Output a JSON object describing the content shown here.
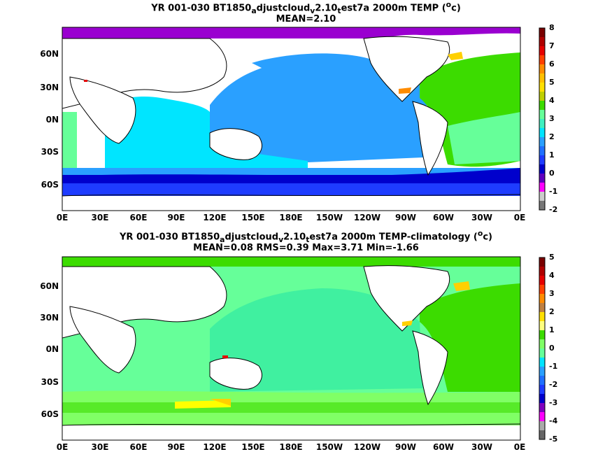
{
  "panels": [
    {
      "title_parts": [
        "YR 001-030 BT1850",
        "a",
        "djustcloud",
        "v",
        "2.10",
        "t",
        "est7a 2000m TEMP (",
        "o",
        "c)"
      ],
      "stats": "MEAN=2.10",
      "colorbar_labels": [
        "8",
        "7",
        "6",
        "5",
        "4",
        "3",
        "2",
        "1",
        "0",
        "-1",
        "-2"
      ],
      "colorbar_colors": [
        "#7a0000",
        "#e60000",
        "#ff8c00",
        "#ffd000",
        "#3cdc00",
        "#66ff99",
        "#00e5ff",
        "#2aa0ff",
        "#0000cc",
        "#ff00ff",
        "#aaaaaa"
      ]
    },
    {
      "title_parts": [
        "YR 001-030 BT1850",
        "a",
        "djustcloud",
        "v",
        "2.10",
        "t",
        "est7a 2000m TEMP-climatology (",
        "o",
        "c)"
      ],
      "stats": "MEAN=0.08   RMS=0.39   Max=3.71   Min=-1.66",
      "colorbar_labels": [
        "5",
        "4",
        "3",
        "2",
        "1",
        "0",
        "-1",
        "-2",
        "-3",
        "-4",
        "-5"
      ],
      "colorbar_colors": [
        "#7a0000",
        "#e60000",
        "#ff8c00",
        "#ffd000",
        "#3cdc00",
        "#66ff99",
        "#00e5ff",
        "#2aa0ff",
        "#0000cc",
        "#8000c0",
        "#ff00ff",
        "#888888"
      ]
    }
  ],
  "lat_labels": [
    "60N",
    "30N",
    "0N",
    "30S",
    "60S"
  ],
  "lon_labels": [
    "0E",
    "30E",
    "60E",
    "90E",
    "120E",
    "150E",
    "180E",
    "150W",
    "120W",
    "90W",
    "60W",
    "30W",
    "0E"
  ]
}
